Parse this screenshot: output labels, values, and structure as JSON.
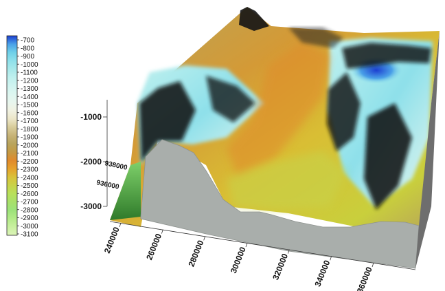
{
  "chart_data": {
    "type": "surface3d",
    "title": "",
    "colorbar": {
      "levels": [
        -700,
        -800,
        -900,
        -1000,
        -1100,
        -1200,
        -1300,
        -1400,
        -1500,
        -1600,
        -1700,
        -1800,
        -1900,
        -2000,
        -2100,
        -2200,
        -2300,
        -2400,
        -2500,
        -2600,
        -2700,
        -2800,
        -2900,
        -3000,
        -3100
      ],
      "labels": [
        "-700",
        "-800",
        "-900",
        "-1000",
        "-1100",
        "-1200",
        "-1300",
        "-1400",
        "-1500",
        "-1600",
        "-1700",
        "-1800",
        "-1900",
        "-2000",
        "-2100",
        "-2200",
        "-2300",
        "-2400",
        "-2500",
        "-2600",
        "-2700",
        "-2800",
        "-2900",
        "-3000",
        "-3100"
      ],
      "colors": [
        "#1c3fd0",
        "#4aa0e8",
        "#6fd0e8",
        "#8ee0ea",
        "#a8e8ea",
        "#bff0ee",
        "#cff4f0",
        "#ddf6f0",
        "#e8f6ee",
        "#f1f2e2",
        "#ece6c8",
        "#d8cc9a",
        "#c7b377",
        "#b8a45c",
        "#c59a44",
        "#e08a2c",
        "#e6a22c",
        "#d9c23a",
        "#c8d24a",
        "#b8e05a",
        "#a8e06a",
        "#9ce27a",
        "#b3ea88",
        "#c9f0a0",
        "#dcf4b8"
      ]
    },
    "z_axis": {
      "ticks": [
        -1000,
        -2000,
        -3000
      ],
      "tick_labels": [
        "-1000",
        "-2000",
        "-3000"
      ]
    },
    "y_axis": {
      "ticks": [
        936000,
        938000
      ],
      "tick_labels": [
        "936000",
        "938000"
      ]
    },
    "x_axis": {
      "ticks": [
        240000,
        260000,
        280000,
        300000,
        320000,
        340000,
        360000
      ],
      "tick_labels": [
        "240000",
        "260000",
        "280000",
        "300000",
        "320000",
        "340000",
        "360000"
      ]
    },
    "colors": {
      "wall": "#a9aeab",
      "wall_edge": "#8e938f",
      "ridge_dark": "#0e0e0e"
    }
  }
}
